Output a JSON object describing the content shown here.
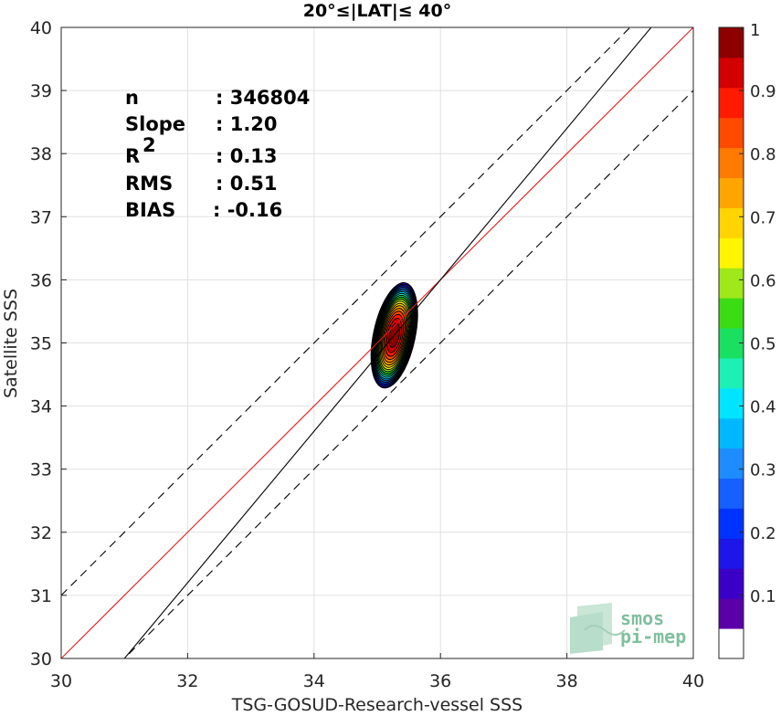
{
  "chart_data": {
    "type": "heatmap",
    "title": "20°≤|LAT|≤ 40°",
    "xlabel": "TSG-GOSUD-Research-vessel SSS",
    "ylabel": "Satellite SSS",
    "xlim": [
      30,
      40
    ],
    "ylim": [
      30,
      40
    ],
    "xticks": [
      "30",
      "32",
      "34",
      "36",
      "38",
      "40"
    ],
    "yticks": [
      "30",
      "31",
      "32",
      "33",
      "34",
      "35",
      "36",
      "37",
      "38",
      "39",
      "40"
    ],
    "grid": true,
    "stats": [
      {
        "label": "n",
        "value": ": 346804"
      },
      {
        "label": "Slope",
        "value": ": 1.20"
      },
      {
        "label": "R",
        "sup": "2",
        "value": ": 0.13"
      },
      {
        "label": "RMS",
        "value": ": 0.51"
      },
      {
        "label": "BIAS",
        "value": ": -0.16"
      }
    ],
    "lines": [
      {
        "name": "one-to-one",
        "color": "#e41a1c",
        "style": "solid",
        "slope": 1.0,
        "intercept": 0.0
      },
      {
        "name": "regression",
        "color": "#000000",
        "style": "solid",
        "slope": 1.2,
        "intercept": -7.2
      },
      {
        "name": "upper-bound",
        "color": "#000000",
        "style": "dashed",
        "slope": 1.0,
        "intercept": 1.0
      },
      {
        "name": "lower-bound",
        "color": "#000000",
        "style": "dashed",
        "slope": 1.0,
        "intercept": -1.0
      }
    ],
    "density": {
      "center_x": 35.27,
      "center_y": 35.12,
      "levels": [
        0.05,
        0.1,
        0.15,
        0.2,
        0.25,
        0.3,
        0.35,
        0.4,
        0.45,
        0.5,
        0.55,
        0.6,
        0.65,
        0.7,
        0.75,
        0.8,
        0.85,
        0.9,
        0.95
      ],
      "outer_sx": 0.33,
      "outer_sy": 0.85,
      "rotation_deg": 12
    },
    "colorbar": {
      "range": [
        0,
        1
      ],
      "ticks": [
        "0.1",
        "0.2",
        "0.3",
        "0.4",
        "0.5",
        "0.6",
        "0.7",
        "0.8",
        "0.9",
        "1"
      ],
      "bands": [
        "#ffffff",
        "#5b00a8",
        "#3a00c8",
        "#1d16e6",
        "#0033ff",
        "#1560ff",
        "#1e8cff",
        "#00b8ff",
        "#00e5ff",
        "#1cf0b4",
        "#19e060",
        "#3cdc14",
        "#9fe81a",
        "#fff500",
        "#ffd400",
        "#ffa500",
        "#ff7a00",
        "#ff4a00",
        "#ff1a00",
        "#d20000",
        "#8c0000"
      ]
    },
    "logo": [
      "smos",
      "pi-mep"
    ]
  }
}
